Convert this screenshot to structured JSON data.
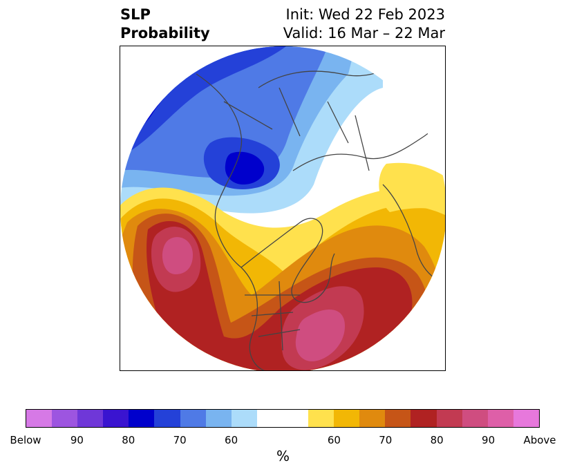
{
  "title": {
    "left_line1": "SLP",
    "left_line2": "Probability",
    "right_line1": "Init: Wed 22 Feb 2023",
    "right_line2": "Valid: 16 Mar – 22 Mar"
  },
  "colorbar": {
    "label": "%",
    "ticks": [
      "Below",
      "90",
      "80",
      "70",
      "60",
      "60",
      "70",
      "80",
      "90",
      "Above"
    ],
    "colors_below": [
      "#d679e6",
      "#9d55e0",
      "#6f37d8",
      "#3a14d0",
      "#0000cc",
      "#2441d8",
      "#4f7ae6",
      "#79b4f0",
      "#acdcfa"
    ],
    "color_neutral": "#ffffff",
    "colors_above": [
      "#ffe14d",
      "#f2b705",
      "#e08a0e",
      "#c65517",
      "#b02222",
      "#c23a52",
      "#cf4d80",
      "#de5fa8",
      "#e778dc"
    ]
  },
  "map": {
    "projection": "north polar stereographic",
    "features": [
      "below-normal probability over Siberia and Arctic Ocean",
      "above-normal probability over NE Pacific",
      "above-normal probability over eastern United States and western Atlantic"
    ]
  }
}
